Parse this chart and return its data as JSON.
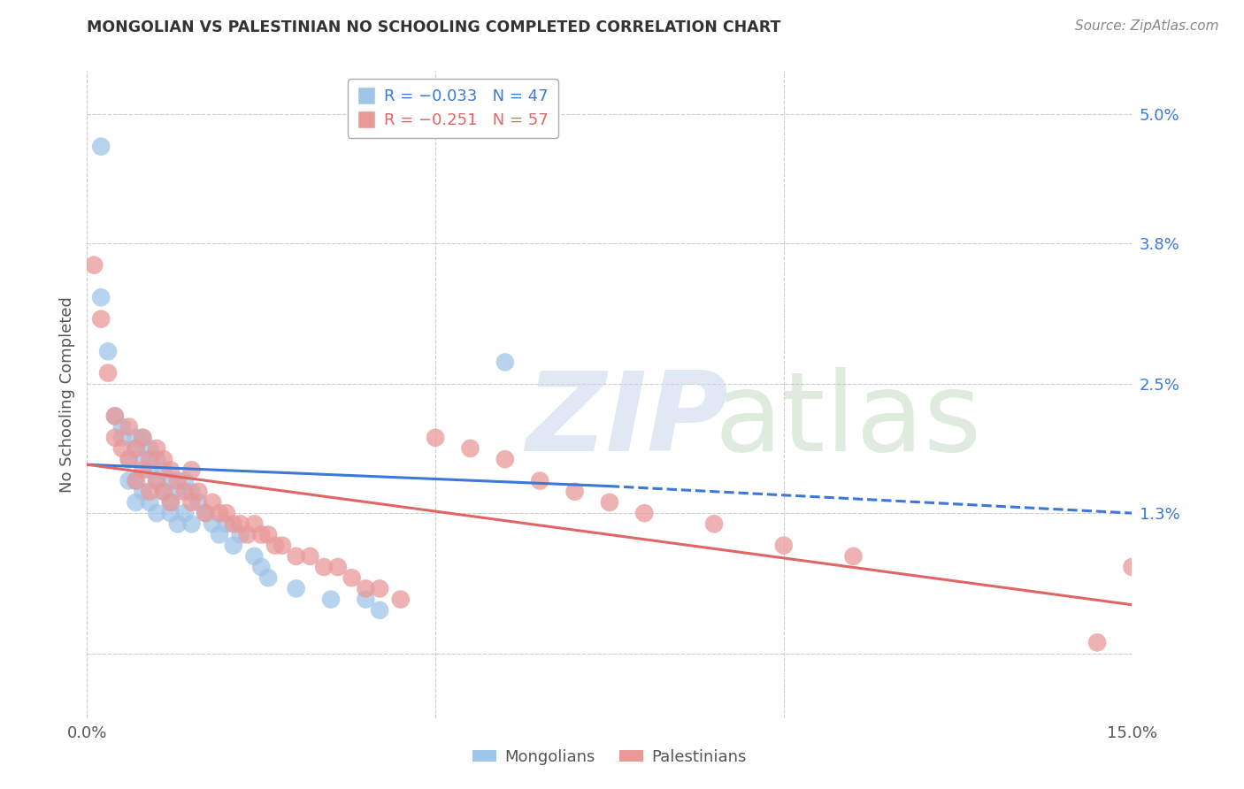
{
  "title": "MONGOLIAN VS PALESTINIAN NO SCHOOLING COMPLETED CORRELATION CHART",
  "source": "Source: ZipAtlas.com",
  "ylabel": "No Schooling Completed",
  "xlim": [
    0.0,
    0.15
  ],
  "ylim": [
    -0.006,
    0.054
  ],
  "yticks": [
    0.0,
    0.013,
    0.025,
    0.038,
    0.05
  ],
  "ytick_labels": [
    "",
    "1.3%",
    "2.5%",
    "3.8%",
    "5.0%"
  ],
  "xticks": [
    0.0,
    0.05,
    0.1,
    0.15
  ],
  "xtick_labels": [
    "0.0%",
    "",
    "",
    "15.0%"
  ],
  "mongolian_color": "#9fc5e8",
  "palestinian_color": "#ea9999",
  "mongolian_line_color": "#3c78d8",
  "palestinian_line_color": "#e06666",
  "mong_line_start_x": 0.0,
  "mong_line_start_y": 0.0175,
  "mong_line_solid_end_x": 0.075,
  "mong_line_solid_end_y": 0.0155,
  "mong_line_dash_end_x": 0.15,
  "mong_line_dash_end_y": 0.013,
  "pal_line_start_x": 0.0,
  "pal_line_start_y": 0.0175,
  "pal_line_end_x": 0.15,
  "pal_line_end_y": 0.0045,
  "mongolians_x": [
    0.002,
    0.002,
    0.003,
    0.004,
    0.005,
    0.005,
    0.006,
    0.006,
    0.007,
    0.007,
    0.007,
    0.007,
    0.008,
    0.008,
    0.008,
    0.009,
    0.009,
    0.009,
    0.01,
    0.01,
    0.01,
    0.011,
    0.011,
    0.012,
    0.012,
    0.012,
    0.013,
    0.013,
    0.014,
    0.014,
    0.015,
    0.015,
    0.016,
    0.017,
    0.018,
    0.019,
    0.02,
    0.021,
    0.022,
    0.024,
    0.025,
    0.026,
    0.03,
    0.035,
    0.04,
    0.042,
    0.06
  ],
  "mongolians_y": [
    0.047,
    0.033,
    0.028,
    0.022,
    0.021,
    0.02,
    0.018,
    0.016,
    0.02,
    0.019,
    0.016,
    0.014,
    0.02,
    0.018,
    0.015,
    0.019,
    0.017,
    0.014,
    0.018,
    0.016,
    0.013,
    0.017,
    0.015,
    0.016,
    0.014,
    0.013,
    0.015,
    0.012,
    0.016,
    0.013,
    0.015,
    0.012,
    0.014,
    0.013,
    0.012,
    0.011,
    0.012,
    0.01,
    0.011,
    0.009,
    0.008,
    0.007,
    0.006,
    0.005,
    0.005,
    0.004,
    0.027
  ],
  "palestinians_x": [
    0.001,
    0.002,
    0.003,
    0.004,
    0.004,
    0.005,
    0.006,
    0.006,
    0.007,
    0.007,
    0.008,
    0.008,
    0.009,
    0.009,
    0.01,
    0.01,
    0.011,
    0.011,
    0.012,
    0.012,
    0.013,
    0.014,
    0.015,
    0.015,
    0.016,
    0.017,
    0.018,
    0.019,
    0.02,
    0.021,
    0.022,
    0.023,
    0.024,
    0.025,
    0.026,
    0.027,
    0.028,
    0.03,
    0.032,
    0.034,
    0.036,
    0.038,
    0.04,
    0.042,
    0.045,
    0.05,
    0.055,
    0.06,
    0.065,
    0.07,
    0.075,
    0.08,
    0.09,
    0.1,
    0.11,
    0.145,
    0.15
  ],
  "palestinians_y": [
    0.036,
    0.031,
    0.026,
    0.022,
    0.02,
    0.019,
    0.021,
    0.018,
    0.019,
    0.016,
    0.02,
    0.017,
    0.018,
    0.015,
    0.019,
    0.016,
    0.018,
    0.015,
    0.017,
    0.014,
    0.016,
    0.015,
    0.017,
    0.014,
    0.015,
    0.013,
    0.014,
    0.013,
    0.013,
    0.012,
    0.012,
    0.011,
    0.012,
    0.011,
    0.011,
    0.01,
    0.01,
    0.009,
    0.009,
    0.008,
    0.008,
    0.007,
    0.006,
    0.006,
    0.005,
    0.02,
    0.019,
    0.018,
    0.016,
    0.015,
    0.014,
    0.013,
    0.012,
    0.01,
    0.009,
    0.001,
    0.008
  ]
}
